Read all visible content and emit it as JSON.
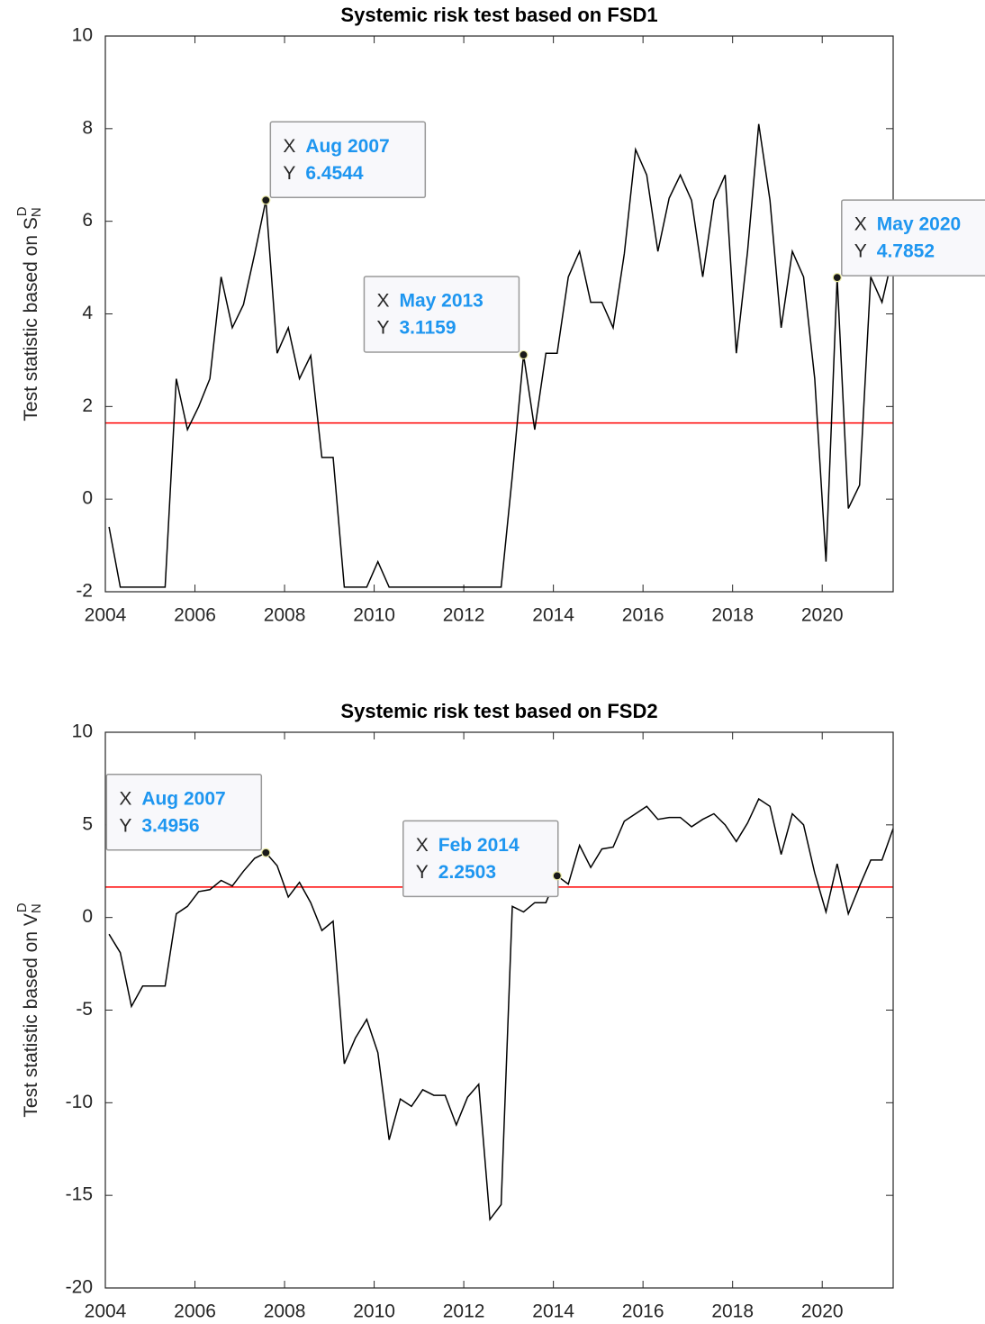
{
  "chart_data": [
    {
      "type": "line",
      "title": "Systemic risk test based on FSD1",
      "ylabel": "Test statistic based on S",
      "ylabel_sub": "N",
      "ylabel_sup": "D",
      "x": [
        "2004-02",
        "2004-05",
        "2004-08",
        "2004-11",
        "2005-02",
        "2005-05",
        "2005-08",
        "2005-11",
        "2006-02",
        "2006-05",
        "2006-08",
        "2006-11",
        "2007-02",
        "2007-05",
        "2007-08",
        "2007-11",
        "2008-02",
        "2008-05",
        "2008-08",
        "2008-11",
        "2009-02",
        "2009-05",
        "2009-08",
        "2009-11",
        "2010-02",
        "2010-05",
        "2010-08",
        "2010-11",
        "2011-02",
        "2011-05",
        "2011-08",
        "2011-11",
        "2012-02",
        "2012-05",
        "2012-08",
        "2012-11",
        "2013-02",
        "2013-05",
        "2013-08",
        "2013-11",
        "2014-02",
        "2014-05",
        "2014-08",
        "2014-11",
        "2015-02",
        "2015-05",
        "2015-08",
        "2015-11",
        "2016-02",
        "2016-05",
        "2016-08",
        "2016-11",
        "2017-02",
        "2017-05",
        "2017-08",
        "2017-11",
        "2018-02",
        "2018-05",
        "2018-08",
        "2018-11",
        "2019-02",
        "2019-05",
        "2019-08",
        "2019-11",
        "2020-02",
        "2020-05",
        "2020-08",
        "2020-11",
        "2021-02",
        "2021-05",
        "2021-08"
      ],
      "series": [
        {
          "name": "FSD1",
          "color": "#000000",
          "values": [
            -0.6,
            -1.9,
            -1.9,
            -1.9,
            -1.9,
            -1.9,
            2.6,
            1.5,
            2.0,
            2.6,
            4.8,
            3.7,
            4.2,
            5.3,
            6.4544,
            3.15,
            3.7,
            2.6,
            3.1,
            0.9,
            0.9,
            -1.9,
            -1.9,
            -1.9,
            -1.35,
            -1.9,
            -1.9,
            -1.9,
            -1.9,
            -1.9,
            -1.9,
            -1.9,
            -1.9,
            -1.9,
            -1.9,
            -1.9,
            0.5,
            3.1159,
            1.5,
            3.15,
            3.15,
            4.8,
            5.35,
            4.25,
            4.25,
            3.7,
            5.3,
            7.55,
            7.0,
            5.35,
            6.5,
            7.0,
            6.45,
            4.8,
            6.45,
            7.0,
            3.15,
            5.35,
            8.1,
            6.45,
            3.7,
            5.35,
            4.8,
            2.6,
            -1.35,
            4.7852,
            -0.2,
            0.3,
            4.8,
            4.25,
            5.3
          ]
        }
      ],
      "hline": {
        "y": 1.645,
        "color": "#ff0000"
      },
      "datatip_x_label": "X",
      "datatip_y_label": "Y",
      "annotations": [
        {
          "x": "2007-08",
          "text": "Aug 2007"
        },
        {
          "x": "2013-05",
          "text": "May 2013"
        },
        {
          "x": "2020-05",
          "text": "May 2020"
        }
      ],
      "xlim": [
        "2004-01",
        "2021-08"
      ],
      "xticks": [
        2004,
        2006,
        2008,
        2010,
        2012,
        2014,
        2016,
        2018,
        2020
      ],
      "ylim": [
        -2,
        10
      ],
      "yticks": [
        -2,
        0,
        2,
        4,
        6,
        8,
        10
      ],
      "grid": false
    },
    {
      "type": "line",
      "title": "Systemic risk test based on FSD2",
      "ylabel": "Test statistic based on V",
      "ylabel_sub": "N",
      "ylabel_sup": "D",
      "x": [
        "2004-02",
        "2004-05",
        "2004-08",
        "2004-11",
        "2005-02",
        "2005-05",
        "2005-08",
        "2005-11",
        "2006-02",
        "2006-05",
        "2006-08",
        "2006-11",
        "2007-02",
        "2007-05",
        "2007-08",
        "2007-11",
        "2008-02",
        "2008-05",
        "2008-08",
        "2008-11",
        "2009-02",
        "2009-05",
        "2009-08",
        "2009-11",
        "2010-02",
        "2010-05",
        "2010-08",
        "2010-11",
        "2011-02",
        "2011-05",
        "2011-08",
        "2011-11",
        "2012-02",
        "2012-05",
        "2012-08",
        "2012-11",
        "2013-02",
        "2013-05",
        "2013-08",
        "2013-11",
        "2014-02",
        "2014-05",
        "2014-08",
        "2014-11",
        "2015-02",
        "2015-05",
        "2015-08",
        "2015-11",
        "2016-02",
        "2016-05",
        "2016-08",
        "2016-11",
        "2017-02",
        "2017-05",
        "2017-08",
        "2017-11",
        "2018-02",
        "2018-05",
        "2018-08",
        "2018-11",
        "2019-02",
        "2019-05",
        "2019-08",
        "2019-11",
        "2020-02",
        "2020-05",
        "2020-08",
        "2020-11",
        "2021-02",
        "2021-05",
        "2021-08"
      ],
      "series": [
        {
          "name": "FSD2",
          "color": "#000000",
          "values": [
            -0.9,
            -1.9,
            -4.8,
            -3.7,
            -3.7,
            -3.7,
            0.2,
            0.6,
            1.4,
            1.5,
            2.0,
            1.7,
            2.5,
            3.2,
            3.4956,
            2.8,
            1.1,
            1.9,
            0.8,
            -0.7,
            -0.2,
            -7.9,
            -6.5,
            -5.5,
            -7.3,
            -12.0,
            -9.8,
            -10.2,
            -9.3,
            -9.6,
            -9.6,
            -11.2,
            -9.7,
            -9.0,
            -16.3,
            -15.5,
            0.6,
            0.3,
            0.8,
            0.8,
            2.2503,
            1.8,
            3.9,
            2.7,
            3.7,
            3.8,
            5.2,
            5.6,
            6.0,
            5.3,
            5.4,
            5.4,
            4.9,
            5.3,
            5.6,
            5.0,
            4.1,
            5.1,
            6.4,
            6.0,
            3.4,
            5.6,
            5.0,
            2.4,
            0.3,
            2.9,
            0.2,
            1.7,
            3.1,
            3.1,
            4.8
          ]
        }
      ],
      "hline": {
        "y": 1.645,
        "color": "#ff0000"
      },
      "datatip_x_label": "X",
      "datatip_y_label": "Y",
      "annotations": [
        {
          "x": "2007-08",
          "text": "Aug 2007"
        },
        {
          "x": "2014-02",
          "text": "Feb 2014"
        }
      ],
      "xlim": [
        "2004-01",
        "2021-08"
      ],
      "xticks": [
        2004,
        2006,
        2008,
        2010,
        2012,
        2014,
        2016,
        2018,
        2020
      ],
      "ylim": [
        -20,
        10
      ],
      "yticks": [
        -20,
        -15,
        -10,
        -5,
        0,
        5,
        10
      ],
      "grid": false
    }
  ]
}
